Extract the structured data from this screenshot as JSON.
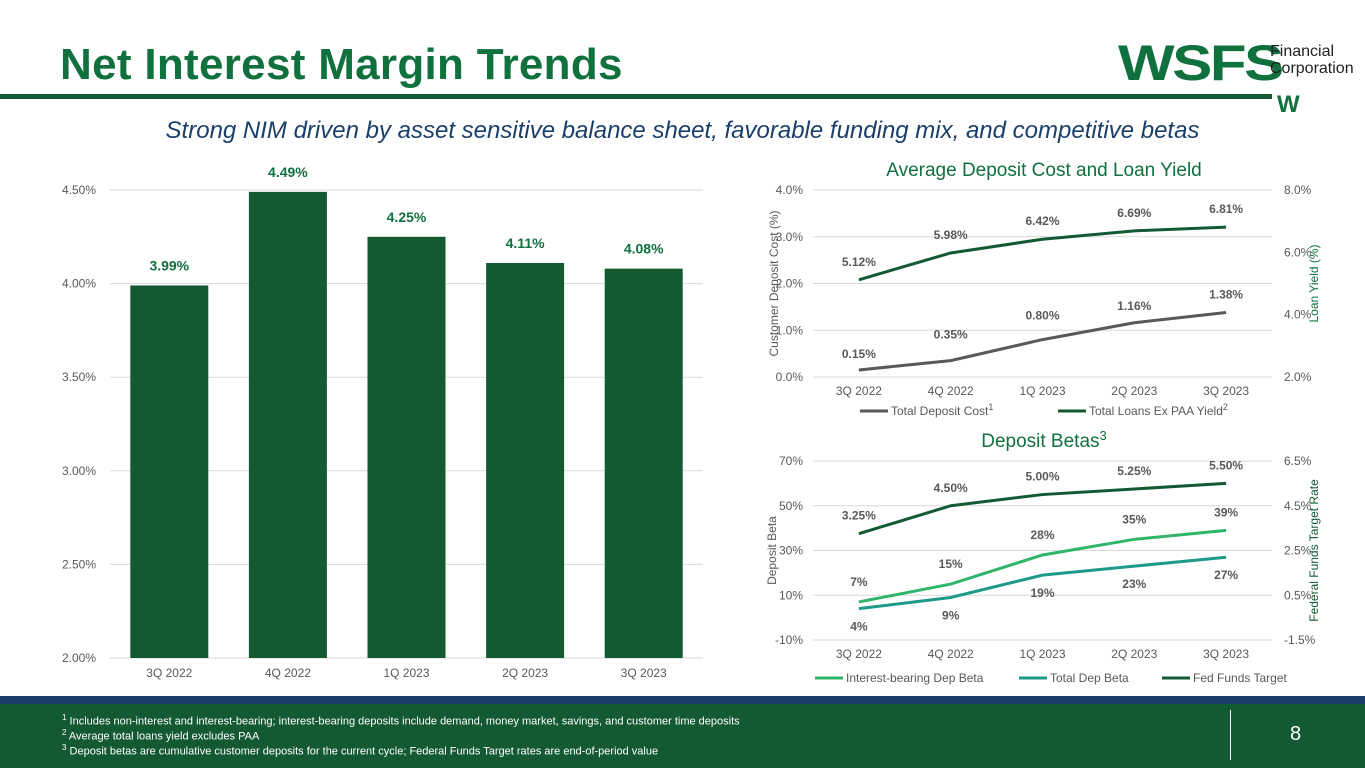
{
  "page": {
    "title": "Net Interest Margin Trends",
    "subtitle": "Strong NIM driven by asset sensitive balance sheet, favorable funding mix, and competitive betas",
    "page_number": "8"
  },
  "logo": {
    "brand": "WSFS",
    "line1": "Financial",
    "line2": "Corporation",
    "mark": "W"
  },
  "footnotes": [
    {
      "marker": "1",
      "text": "Includes non-interest and interest-bearing; interest-bearing deposits include demand, money market, savings, and customer time deposits"
    },
    {
      "marker": "2",
      "text": "Average total loans yield excludes PAA"
    },
    {
      "marker": "3",
      "text": "Deposit betas are cumulative customer deposits for the current cycle; Federal Funds Target rates are end-of-period value"
    }
  ],
  "colors": {
    "bar": "#135a32",
    "dark_green": "#135a32",
    "gray": "#595959",
    "light_green": "#2fb56a",
    "teal": "#1f9a8a",
    "title_green": "#10703e"
  },
  "chart_data": [
    {
      "type": "bar",
      "title": "",
      "categories": [
        "3Q 2022",
        "4Q 2022",
        "1Q 2023",
        "2Q 2023",
        "3Q 2023"
      ],
      "values": [
        3.99,
        4.49,
        4.25,
        4.11,
        4.08
      ],
      "value_labels": [
        "3.99%",
        "4.49%",
        "4.25%",
        "4.11%",
        "4.08%"
      ],
      "ylim": [
        2.0,
        4.5
      ],
      "yticks": [
        "2.00%",
        "2.50%",
        "3.00%",
        "3.50%",
        "4.00%",
        "4.50%"
      ],
      "grid": true
    },
    {
      "type": "line",
      "title": "Average Deposit Cost and Loan Yield",
      "categories": [
        "3Q 2022",
        "4Q 2022",
        "1Q 2023",
        "2Q 2023",
        "3Q 2023"
      ],
      "ylabel": "Customer Deposit Cost (%)",
      "ylabel_right": "Loan Yield (%)",
      "ylim": [
        0,
        4
      ],
      "ylim_right": [
        2,
        8
      ],
      "yticks": [
        "0.0%",
        "1.0%",
        "2.0%",
        "3.0%",
        "4.0%"
      ],
      "yticks_right": [
        "2.0%",
        "4.0%",
        "6.0%",
        "8.0%"
      ],
      "series": [
        {
          "name": "Total Deposit Cost",
          "sup": "1",
          "axis": "left",
          "values": [
            0.15,
            0.35,
            0.8,
            1.16,
            1.38
          ],
          "labels": [
            "0.15%",
            "0.35%",
            "0.80%",
            "1.16%",
            "1.38%"
          ]
        },
        {
          "name": "Total Loans Ex PAA Yield",
          "sup": "2",
          "axis": "right",
          "values": [
            5.12,
            5.98,
            6.42,
            6.69,
            6.81
          ],
          "labels": [
            "5.12%",
            "5.98%",
            "6.42%",
            "6.69%",
            "6.81%"
          ]
        }
      ],
      "legend": "bottom"
    },
    {
      "type": "line",
      "title": "Deposit Betas",
      "title_sup": "3",
      "categories": [
        "3Q 2022",
        "4Q 2022",
        "1Q 2023",
        "2Q 2023",
        "3Q 2023"
      ],
      "ylabel": "Deposit Beta",
      "ylabel_right": "Federal Funds Target Rate",
      "ylim": [
        -10,
        70
      ],
      "ylim_right": [
        -1.5,
        6.5
      ],
      "yticks": [
        "-10%",
        "10%",
        "30%",
        "50%",
        "70%"
      ],
      "yticks_right": [
        "-1.5%",
        "0.5%",
        "2.5%",
        "4.5%",
        "6.5%"
      ],
      "series": [
        {
          "name": "Interest-bearing Dep Beta",
          "axis": "left",
          "values": [
            7,
            15,
            28,
            35,
            39
          ],
          "labels": [
            "7%",
            "15%",
            "28%",
            "35%",
            "39%"
          ]
        },
        {
          "name": "Total Dep Beta",
          "axis": "left",
          "values": [
            4,
            9,
            19,
            23,
            27
          ],
          "labels": [
            "4%",
            "9%",
            "19%",
            "23%",
            "27%"
          ]
        },
        {
          "name": "Fed Funds Target",
          "axis": "right",
          "values": [
            3.25,
            4.5,
            5.0,
            5.25,
            5.5
          ],
          "labels": [
            "3.25%",
            "4.50%",
            "5.00%",
            "5.25%",
            "5.50%"
          ]
        }
      ],
      "legend": "bottom"
    }
  ]
}
